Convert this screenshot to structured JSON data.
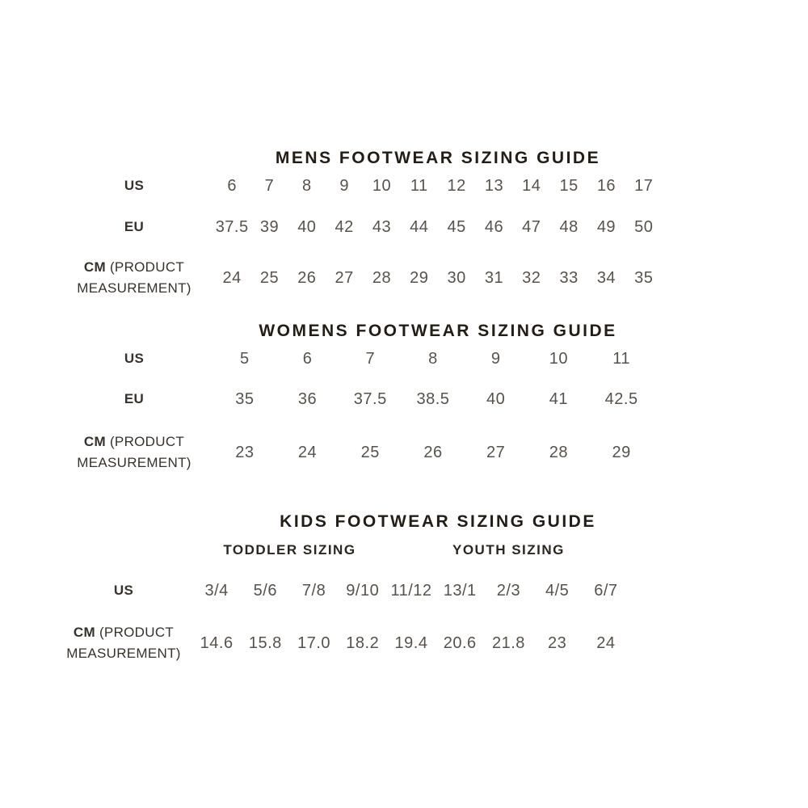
{
  "page": {
    "background": "#ffffff",
    "colors": {
      "title": "#241d15",
      "label": "#37322b",
      "value": "#57524b"
    }
  },
  "mens": {
    "title": "MENS FOOTWEAR SIZING GUIDE",
    "rows": {
      "us": {
        "label": "US",
        "values": [
          "6",
          "7",
          "8",
          "9",
          "10",
          "11",
          "12",
          "13",
          "14",
          "15",
          "16",
          "17"
        ]
      },
      "eu": {
        "label": "EU",
        "values": [
          "37.5",
          "39",
          "40",
          "42",
          "43",
          "44",
          "45",
          "46",
          "47",
          "48",
          "49",
          "50"
        ]
      },
      "cm": {
        "label": "CM",
        "label_suffix": "(PRODUCT MEASUREMENT)",
        "values": [
          "24",
          "25",
          "26",
          "27",
          "28",
          "29",
          "30",
          "31",
          "32",
          "33",
          "34",
          "35"
        ]
      }
    }
  },
  "womens": {
    "title": "WOMENS FOOTWEAR SIZING GUIDE",
    "rows": {
      "us": {
        "label": "US",
        "values": [
          "5",
          "6",
          "7",
          "8",
          "9",
          "10",
          "11"
        ]
      },
      "eu": {
        "label": "EU",
        "values": [
          "35",
          "36",
          "37.5",
          "38.5",
          "40",
          "41",
          "42.5"
        ]
      },
      "cm": {
        "label": "CM",
        "label_suffix": "(PRODUCT MEASUREMENT)",
        "values": [
          "23",
          "24",
          "25",
          "26",
          "27",
          "28",
          "29"
        ]
      }
    }
  },
  "kids": {
    "title": "KIDS FOOTWEAR SIZING GUIDE",
    "group_headers": {
      "toddler": "TODDLER SIZING",
      "youth": "YOUTH SIZING"
    },
    "rows": {
      "us": {
        "label": "US",
        "values": [
          "3/4",
          "5/6",
          "7/8",
          "9/10",
          "11/12",
          "13/1",
          "2/3",
          "4/5",
          "6/7"
        ]
      },
      "cm": {
        "label": "CM",
        "label_suffix": "(PRODUCT MEASUREMENT)",
        "values": [
          "14.6",
          "15.8",
          "17.0",
          "18.2",
          "19.4",
          "20.6",
          "21.8",
          "23",
          "24"
        ]
      }
    }
  }
}
